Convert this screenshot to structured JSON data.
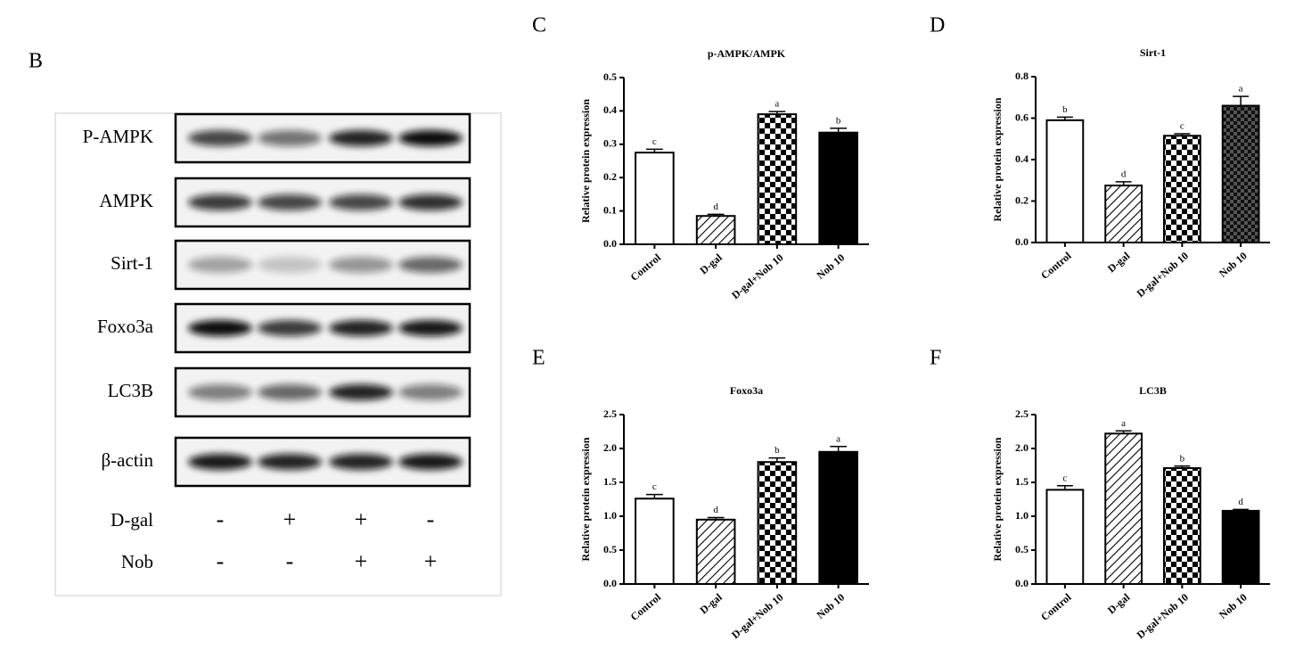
{
  "blot": {
    "letter": "B",
    "rows": [
      "P-AMPK",
      "AMPK",
      "Sirt-1",
      "Foxo3a",
      "LC3B",
      "β-actin"
    ],
    "treatments": [
      {
        "name": "D-gal",
        "signs": [
          "-",
          "+",
          "+",
          "-"
        ]
      },
      {
        "name": "Nob",
        "signs": [
          "-",
          "-",
          "+",
          "+"
        ]
      }
    ]
  },
  "chart_data": [
    {
      "letter": "C",
      "type": "bar",
      "title": "p-AMPK/AMPK",
      "ylabel": "Relative protein expression",
      "categories": [
        "Control",
        "D-gal",
        "D-gal+Nob 10",
        "Nob 10"
      ],
      "values": [
        0.275,
        0.085,
        0.39,
        0.335
      ],
      "errors": [
        0.01,
        0.005,
        0.008,
        0.013
      ],
      "significance": [
        "c",
        "d",
        "a",
        "b"
      ],
      "patterns": [
        "white",
        "hatch",
        "checker",
        "black"
      ],
      "ylim": [
        0,
        0.5
      ],
      "yticks": [
        {
          "value": 0,
          "label": "0.0"
        },
        0.1,
        0.2,
        0.3,
        0.4,
        0.5
      ]
    },
    {
      "letter": "D",
      "type": "bar",
      "title": "Sirt-1",
      "ylabel": "Relative protein expression",
      "categories": [
        "Control",
        "D-gal",
        "D-gal+Nob 10",
        "Nob 10"
      ],
      "values": [
        0.59,
        0.275,
        0.515,
        0.66
      ],
      "errors": [
        0.015,
        0.018,
        0.01,
        0.045
      ],
      "significance": [
        "b",
        "d",
        "c",
        "a"
      ],
      "patterns": [
        "white",
        "hatch",
        "checker",
        "dark-checker"
      ],
      "ylim": [
        0,
        0.8
      ],
      "yticks": [
        {
          "value": 0,
          "label": "0.0"
        },
        0.2,
        0.4,
        0.6,
        0.8
      ]
    },
    {
      "letter": "E",
      "type": "bar",
      "title": "Foxo3a",
      "ylabel": "Relative protein expression",
      "categories": [
        "Control",
        "D-gal",
        "D-gal+Nob 10",
        "Nob 10"
      ],
      "values": [
        1.26,
        0.95,
        1.8,
        1.95
      ],
      "errors": [
        0.06,
        0.03,
        0.06,
        0.08
      ],
      "significance": [
        "c",
        "d",
        "b",
        "a"
      ],
      "patterns": [
        "white",
        "hatch",
        "checker",
        "black"
      ],
      "ylim": [
        0,
        2.5
      ],
      "yticks": [
        {
          "value": 0,
          "label": "0.0"
        },
        0.5,
        {
          "value": 1,
          "label": "1.0"
        },
        1.5,
        {
          "value": 2,
          "label": "2.0"
        },
        2.5
      ]
    },
    {
      "letter": "F",
      "type": "bar",
      "title": "LC3B",
      "ylabel": "Relative protein expression",
      "categories": [
        "Control",
        "D-gal",
        "D-gal+Nob 10",
        "Nob 10"
      ],
      "values": [
        1.39,
        2.22,
        1.71,
        1.08
      ],
      "errors": [
        0.06,
        0.04,
        0.03,
        0.02
      ],
      "significance": [
        "c",
        "a",
        "b",
        "d"
      ],
      "patterns": [
        "white",
        "hatch",
        "checker",
        "black"
      ],
      "ylim": [
        0,
        2.5
      ],
      "yticks": [
        {
          "value": 0,
          "label": "0.0"
        },
        0.5,
        {
          "value": 1,
          "label": "1.0"
        },
        1.5,
        {
          "value": 2,
          "label": "2.0"
        },
        2.5
      ]
    }
  ]
}
